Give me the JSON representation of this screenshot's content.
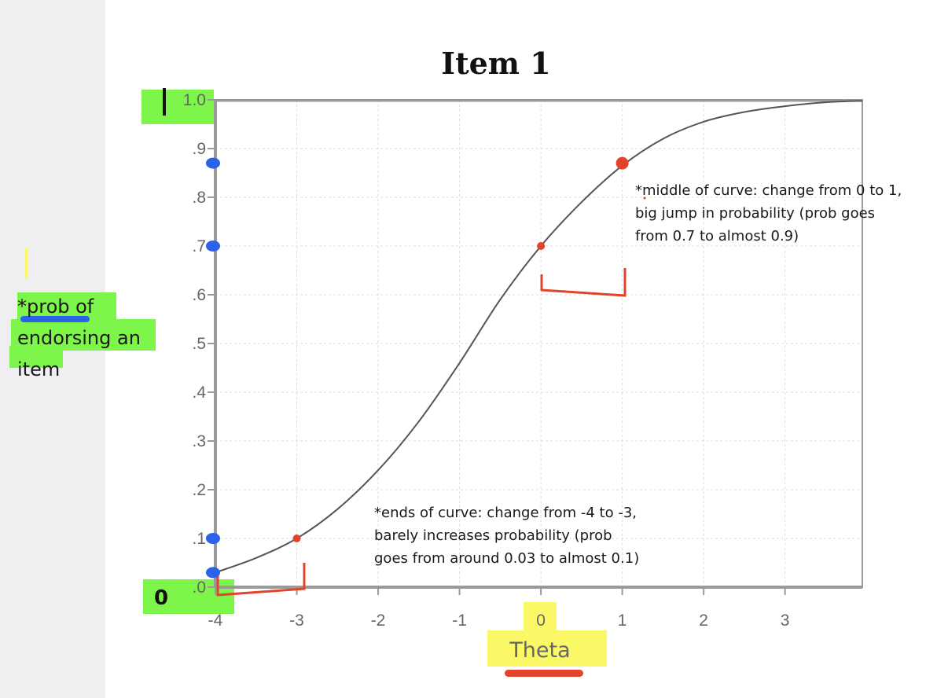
{
  "chart_data": {
    "type": "line",
    "title": "Item 1",
    "xlabel": "Theta",
    "ylabel": "",
    "x_ticks": [
      "-4",
      "-3",
      "-2",
      "-1",
      "0",
      "1",
      "2",
      "3"
    ],
    "y_ticks": [
      ".0",
      ".1",
      ".2",
      ".3",
      ".4",
      ".5",
      ".6",
      ".7",
      ".8",
      ".9",
      "1.0"
    ],
    "xlim": [
      -4,
      3.95
    ],
    "ylim": [
      0,
      1
    ],
    "grid": true,
    "series": [
      {
        "x": [
          -4,
          -3.5,
          -3,
          -2.5,
          -2,
          -1.5,
          -1,
          -0.5,
          0,
          0.5,
          1,
          1.5,
          2,
          2.5,
          3,
          3.5,
          3.95
        ],
        "y": [
          0.03,
          0.06,
          0.1,
          0.16,
          0.24,
          0.34,
          0.46,
          0.59,
          0.7,
          0.79,
          0.865,
          0.92,
          0.955,
          0.975,
          0.987,
          0.995,
          0.998
        ],
        "color": "#555555"
      }
    ]
  },
  "annotations": {
    "ylabel_note": "*prob of\nendorsing an\nitem",
    "middle_note": "*middle of curve: change from 0 to 1,\nbig jump in probability (prob goes\nfrom 0.7 to almost 0.9)",
    "ends_note": "*ends of curve: change from -4 to -3,\nbarely increases probability (prob\ngoes from around 0.03 to almost 0.1)",
    "handwritten_zero": "0",
    "handwritten_one": "1",
    "red_points": [
      {
        "x": -4,
        "y": 0.03
      },
      {
        "x": -3,
        "y": 0.1
      },
      {
        "x": 0,
        "y": 0.7
      },
      {
        "x": 1,
        "y": 0.87
      }
    ],
    "blue_points": [
      {
        "y": 0.03
      },
      {
        "y": 0.1
      },
      {
        "y": 0.7
      },
      {
        "y": 0.87
      }
    ],
    "colors": {
      "highlight_green": "#7ef54a",
      "highlight_yellow": "#fbf868",
      "ink_red": "#e0452b",
      "ink_blue": "#2c62ea"
    }
  }
}
